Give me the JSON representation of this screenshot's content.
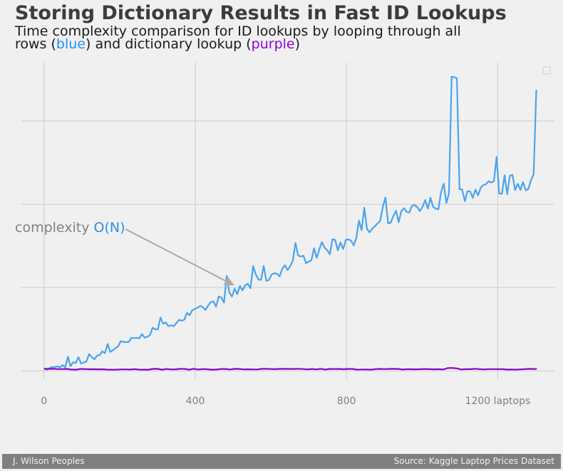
{
  "title": "Storing Dictionary Results in Fast ID Lookups",
  "subtitle": {
    "line1": "Time complexity comparison for ID lookups by looping through all",
    "line2_a": "rows (",
    "blue_word": "blue",
    "line2_b": ") and dictionary lookup (",
    "purple_word": "purple",
    "line2_c": ")"
  },
  "annotation": {
    "text_a": "complexity ",
    "text_b": "O(N)"
  },
  "footer": {
    "left": "J. Wilson Peoples",
    "right": "Source: Kaggle Laptop Prices Dataset"
  },
  "colors": {
    "background": "#f0f0f0",
    "loop_series": "#4aa3f0",
    "dict_series": "#8a00c8",
    "annotation_text": "#808080",
    "annotation_accent": "#2f8de4",
    "arrow": "#aaaaaa",
    "grid": "#cbcbcb"
  },
  "chart_data": {
    "type": "line",
    "x_range": [
      0,
      1303
    ],
    "xlim": [
      -60,
      1350
    ],
    "x_ticks": [
      0,
      400,
      800,
      1200
    ],
    "x_tick_labels": [
      "0",
      "400",
      "800",
      "1200 laptops"
    ],
    "y_gridlines": [
      0,
      1,
      2,
      3
    ],
    "ylim": [
      -0.1,
      3.7
    ],
    "y_tick_labels": [],
    "grid": true,
    "legend": "top-right, empty",
    "annotation_point": [
      500,
      1.0
    ],
    "series": [
      {
        "trend": "linear",
        "key_points": [
          [
            0,
            0.02
          ],
          [
            100,
            0.1
          ],
          [
            200,
            0.3
          ],
          [
            300,
            0.5
          ],
          [
            400,
            0.7
          ],
          [
            500,
            0.93
          ],
          [
            600,
            1.15
          ],
          [
            700,
            1.38
          ],
          [
            800,
            1.55
          ],
          [
            900,
            1.78
          ],
          [
            1000,
            1.95
          ],
          [
            1070,
            2.1
          ],
          [
            1150,
            2.15
          ],
          [
            1250,
            2.25
          ],
          [
            1290,
            2.3
          ]
        ],
        "spikes": [
          {
            "x_start": 1072,
            "x_end": 1093,
            "y": 3.5
          },
          {
            "x_start": 1296,
            "x_end": 1303,
            "y": 3.35
          }
        ],
        "end_value": 3.35
      },
      {
        "trend": "flat",
        "value": 0.02
      }
    ]
  }
}
